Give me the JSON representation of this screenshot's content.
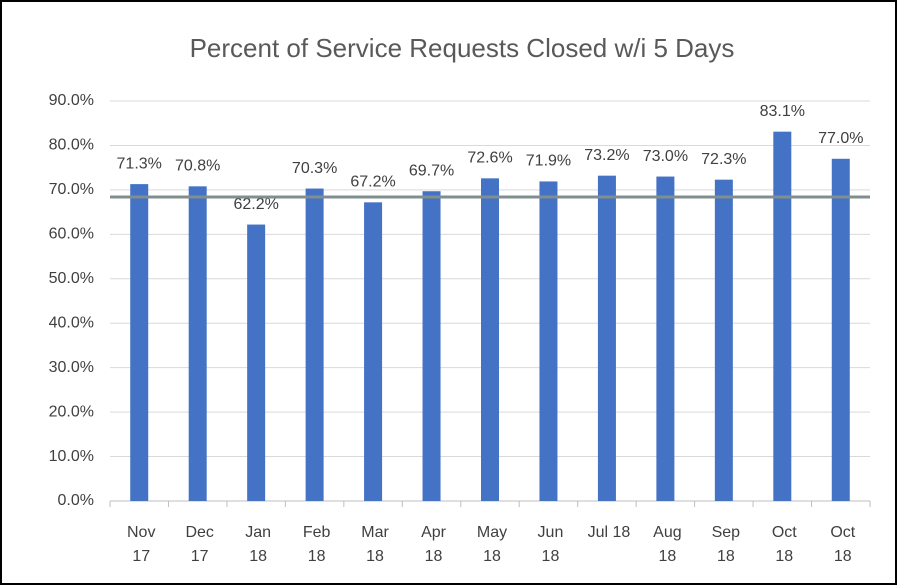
{
  "chart_data": {
    "type": "bar",
    "title": "Percent of Service Requests Closed w/i 5 Days",
    "categories": [
      "Nov 17",
      "Dec 17",
      "Jan 18",
      "Feb 18",
      "Mar 18",
      "Apr 18",
      "May 18",
      "Jun 18",
      "Jul 18",
      "Aug 18",
      "Sep 18",
      "Oct 18",
      "Oct 18"
    ],
    "values": [
      71.3,
      70.8,
      62.2,
      70.3,
      67.2,
      69.7,
      72.6,
      71.9,
      73.2,
      73.0,
      72.3,
      83.1,
      77.0
    ],
    "value_labels": [
      "71.3%",
      "70.8%",
      "62.2%",
      "70.3%",
      "67.2%",
      "69.7%",
      "72.6%",
      "71.9%",
      "73.2%",
      "73.0%",
      "72.3%",
      "83.1%",
      "77.0%"
    ],
    "color": "#4472c4",
    "reference_line": {
      "value": 68.4,
      "color": "#7f8f8f"
    },
    "ylim": [
      0,
      90
    ],
    "yticks": [
      {
        "value": 0,
        "label": "0.0%"
      },
      {
        "value": 10,
        "label": "10.0%"
      },
      {
        "value": 20,
        "label": "20.0%"
      },
      {
        "value": 30,
        "label": "30.0%"
      },
      {
        "value": 40,
        "label": "40.0%"
      },
      {
        "value": 50,
        "label": "50.0%"
      },
      {
        "value": 60,
        "label": "60.0%"
      },
      {
        "value": 70,
        "label": "70.0%"
      },
      {
        "value": 80,
        "label": "80.0%"
      },
      {
        "value": 90,
        "label": "90.0%"
      }
    ],
    "grid": true
  }
}
